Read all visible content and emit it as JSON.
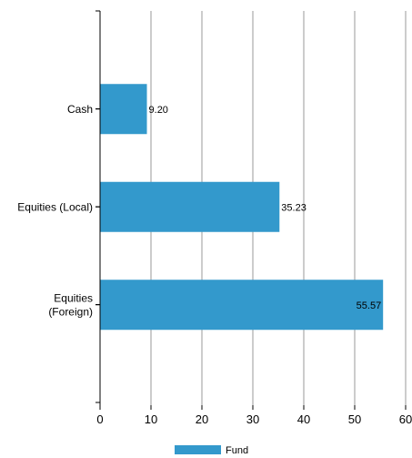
{
  "chart_data": {
    "type": "bar",
    "orientation": "horizontal",
    "categories": [
      [
        "Cash"
      ],
      [
        "Equities (Local)"
      ],
      [
        "Equities",
        "(Foreign)"
      ]
    ],
    "series": [
      {
        "name": "Fund",
        "values": [
          9.2,
          35.23,
          55.57
        ],
        "labels": [
          "9.20",
          "35.23",
          "55.57"
        ]
      }
    ],
    "xlim": [
      0,
      60
    ],
    "xticks": [
      "0",
      "10",
      "20",
      "30",
      "40",
      "50",
      "60"
    ],
    "grid": "vertical",
    "legend": "bottom-center",
    "colors": {
      "bar": "#3399cc",
      "grid": "#999999",
      "axis": "#000000"
    }
  }
}
